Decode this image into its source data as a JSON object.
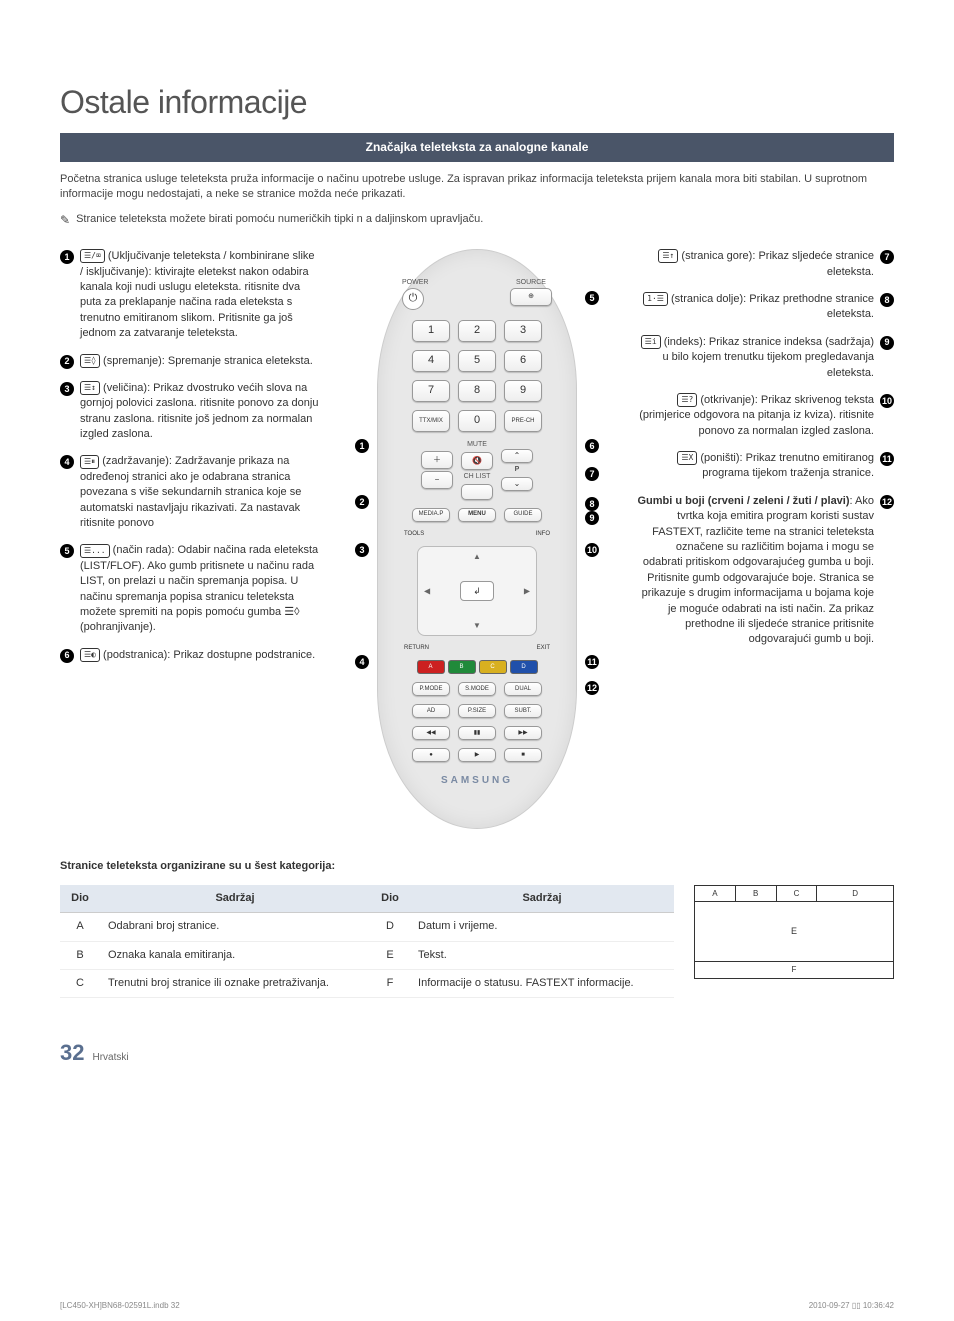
{
  "page": {
    "title": "Ostale informacije",
    "section_banner": "Značajka teleteksta za analogne kanale",
    "intro": "Početna stranica usluge teleteksta pruža informacije o načinu upotrebe usluge. Za ispravan prikaz informacija teleteksta prijem kanala mora biti stabilan. U suprotnom informacije mogu nedostajati, a neke se stranice možda neće prikazati.",
    "note_icon": "✎",
    "note_text": "Stranice teleteksta možete birati pomoću numeričkih tipki n a daljinskom upravljaču.",
    "page_number": "32",
    "page_lang": "Hrvatski",
    "print_left": "[LC450-XH]BN68-02591L.indb  32",
    "print_right": "2010-09-27   ▯▯ 10:36:42"
  },
  "left_items": [
    {
      "num": "1",
      "icon": "☰/⌧",
      "text": "(Uključivanje teleteksta / kombinirane slike / isključivanje): ktivirajte eletekst nakon odabira kanala koji nudi uslugu eleteksta. ritisnite dva puta za preklapanje načina rada eleteksta s trenutno emitiranom slikom. Pritisnite ga još jednom za zatvaranje teleteksta."
    },
    {
      "num": "2",
      "icon": "☰◊",
      "text": "(spremanje): Spremanje stranica eleteksta."
    },
    {
      "num": "3",
      "icon": "☰↕",
      "text": "(veličina): Prikaz dvostruko većih slova na gornjoj polovici zaslona. ritisnite ponovo za donju stranu zaslona. ritisnite još jednom za normalan izgled zaslona."
    },
    {
      "num": "4",
      "icon": "☰⏸",
      "text": "(zadržavanje): Zadržavanje prikaza na određenoj stranici ako je odabrana stranica povezana s više sekundarnih stranica koje se automatski nastavljaju rikazivati. Za nastavak ritisnite ponovo"
    },
    {
      "num": "5",
      "icon": "☰...",
      "text": "(način rada): Odabir načina rada eleteksta (LIST/FLOF). Ako gumb pritisnete u načinu rada LIST, on prelazi u način spremanja popisa. U načinu spremanja popisa stranicu teleteksta možete spremiti na popis pomoću gumba ☰◊ (pohranjivanje)."
    },
    {
      "num": "6",
      "icon": "☰◐",
      "text": "(podstranica): Prikaz dostupne podstranice."
    }
  ],
  "right_items": [
    {
      "num": "7",
      "icon": "☰↑",
      "text": "(stranica gore): Prikaz sljedeće stranice eleteksta."
    },
    {
      "num": "8",
      "icon": "1·☰",
      "text": "(stranica dolje): Prikaz prethodne stranice eleteksta."
    },
    {
      "num": "9",
      "icon": "☰i",
      "text": "(indeks): Prikaz stranice indeksa (sadržaja) u bilo kojem trenutku tijekom pregledavanja eleteksta."
    },
    {
      "num": "10",
      "icon": "☰?",
      "text": "(otkrivanje): Prikaz skrivenog teksta (primjerice odgovora na pitanja iz kviza). ritisnite ponovo za normalan izgled zaslona."
    },
    {
      "num": "11",
      "icon": "☰X",
      "text": "(poništi): Prikaz trenutno emitiranog programa tijekom traženja stranice."
    },
    {
      "num": "12",
      "icon": "",
      "text_bold": "Gumbi u boji (crveni / zeleni / žuti / plavi)",
      "text": ": Ako tvrtka koja emitira program koristi sustav FASTEXT, različite teme na stranici teleteksta označene su različitim bojama i mogu se odabrati pritiskom odgovarajućeg gumba u boji. Pritisnite gumb odgovarajuće boje. Stranica se prikazuje s drugim informacijama u bojama koje je moguće odabrati na isti način. Za prikaz prethodne ili sljedeće stranice pritisnite odgovarajući gumb u boji."
    }
  ],
  "remote": {
    "power_label": "POWER",
    "source_label": "SOURCE",
    "power_glyph": "⏻",
    "source_glyph": "⊕",
    "num_keys": [
      "1",
      "2",
      "3",
      "4",
      "5",
      "6",
      "7",
      "8",
      "9"
    ],
    "zero": "0",
    "ttxmix": "TTX/MIX",
    "prech": "PRE-CH",
    "mute": "MUTE",
    "chlist": "CH LIST",
    "vol_up": "＋",
    "vol_down": "−",
    "ch_up": "⌃",
    "ch_p": "P",
    "ch_down": "⌄",
    "mediap": "MEDIA.P",
    "menu": "MENU",
    "guide": "GUIDE",
    "tools": "TOOLS",
    "info": "INFO",
    "return": "RETURN",
    "exit": "EXIT",
    "enter_glyph": "↲",
    "up": "▲",
    "down": "▼",
    "left": "◀",
    "right": "▶",
    "colors": [
      {
        "label": "A",
        "bg": "#cc2020"
      },
      {
        "label": "B",
        "bg": "#208a3a"
      },
      {
        "label": "C",
        "bg": "#d8b020"
      },
      {
        "label": "D",
        "bg": "#2050aa"
      }
    ],
    "row_modes": [
      "P.MODE",
      "S.MODE",
      "DUAL"
    ],
    "row_ad": [
      "AD",
      "P.SIZE",
      "SUBT."
    ],
    "row_play1": [
      "◀◀",
      "▮▮",
      "▶▶"
    ],
    "row_play2": [
      "●",
      "▶",
      "■"
    ],
    "brand": "SAMSUNG"
  },
  "categories": {
    "title": "Stranice teleteksta organizirane su u šest kategorija:",
    "headers": {
      "part": "Dio",
      "content": "Sadržaj"
    },
    "rows_left": [
      {
        "part": "A",
        "text": "Odabrani broj stranice."
      },
      {
        "part": "B",
        "text": "Oznaka kanala emitiranja."
      },
      {
        "part": "C",
        "text": "Trenutni broj stranice ili oznake pretraživanja."
      }
    ],
    "rows_right": [
      {
        "part": "D",
        "text": "Datum i vrijeme."
      },
      {
        "part": "E",
        "text": "Tekst."
      },
      {
        "part": "F",
        "text": "Informacije o statusu. FASTEXT informacije."
      }
    ],
    "diagram": {
      "a": "A",
      "b": "B",
      "c": "C",
      "d": "D",
      "e": "E",
      "f": "F"
    }
  }
}
